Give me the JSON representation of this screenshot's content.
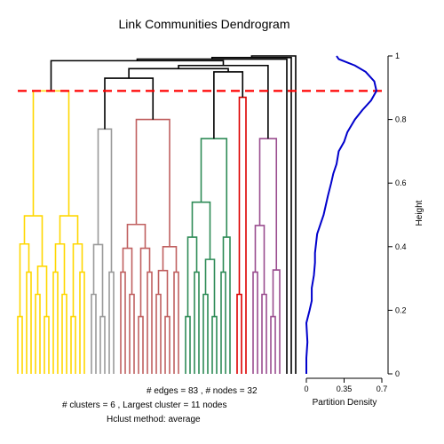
{
  "chart_data": [
    {
      "type": "dendrogram",
      "title": "Link Communities Dendrogram",
      "yaxis": {
        "label": "Height",
        "range": [
          0,
          1
        ],
        "ticks": [
          "0",
          "0.2",
          "0.4",
          "0.6",
          "0.8",
          "1"
        ],
        "position": "right"
      },
      "cut_height": 0.89,
      "cut_color": "#ff0000",
      "clusters": [
        {
          "color": "#ffd700",
          "leaves": 16,
          "merge_height": 0.89
        },
        {
          "color": "#9a9a9a",
          "leaves": 6,
          "merge_height": 0.77
        },
        {
          "color": "#c06060",
          "leaves": 14,
          "merge_height": 0.8
        },
        {
          "color": "#2e8b57",
          "leaves": 11,
          "merge_height": 0.74
        },
        {
          "color": "#dd0000",
          "leaves": 3,
          "merge_height": 0.87
        },
        {
          "color": "#9a4d8f",
          "leaves": 7,
          "merge_height": 0.74
        }
      ],
      "singletons": 3,
      "footer": [
        "# edges =  83 ,   # nodes =  32",
        "# clusters =  6 ,   Largest cluster =  11  nodes",
        "Hclust method:  average"
      ]
    },
    {
      "type": "line",
      "xlabel": "Partition Density",
      "xticks": [
        "0",
        "0.35",
        "0.7"
      ],
      "xlim": [
        0,
        0.7
      ],
      "ylim": [
        0,
        1
      ],
      "color": "#0000cc",
      "points": [
        [
          0.0,
          0.0
        ],
        [
          0.0,
          0.05
        ],
        [
          0.01,
          0.1
        ],
        [
          0.0,
          0.16
        ],
        [
          0.03,
          0.2
        ],
        [
          0.05,
          0.23
        ],
        [
          0.05,
          0.27
        ],
        [
          0.07,
          0.31
        ],
        [
          0.08,
          0.35
        ],
        [
          0.08,
          0.38
        ],
        [
          0.09,
          0.41
        ],
        [
          0.1,
          0.44
        ],
        [
          0.13,
          0.47
        ],
        [
          0.16,
          0.5
        ],
        [
          0.18,
          0.53
        ],
        [
          0.2,
          0.56
        ],
        [
          0.23,
          0.6
        ],
        [
          0.25,
          0.63
        ],
        [
          0.28,
          0.66
        ],
        [
          0.3,
          0.7
        ],
        [
          0.35,
          0.73
        ],
        [
          0.38,
          0.76
        ],
        [
          0.45,
          0.8
        ],
        [
          0.52,
          0.83
        ],
        [
          0.6,
          0.86
        ],
        [
          0.65,
          0.89
        ],
        [
          0.63,
          0.92
        ],
        [
          0.55,
          0.95
        ],
        [
          0.45,
          0.97
        ],
        [
          0.3,
          0.99
        ],
        [
          0.28,
          1.0
        ]
      ]
    }
  ]
}
